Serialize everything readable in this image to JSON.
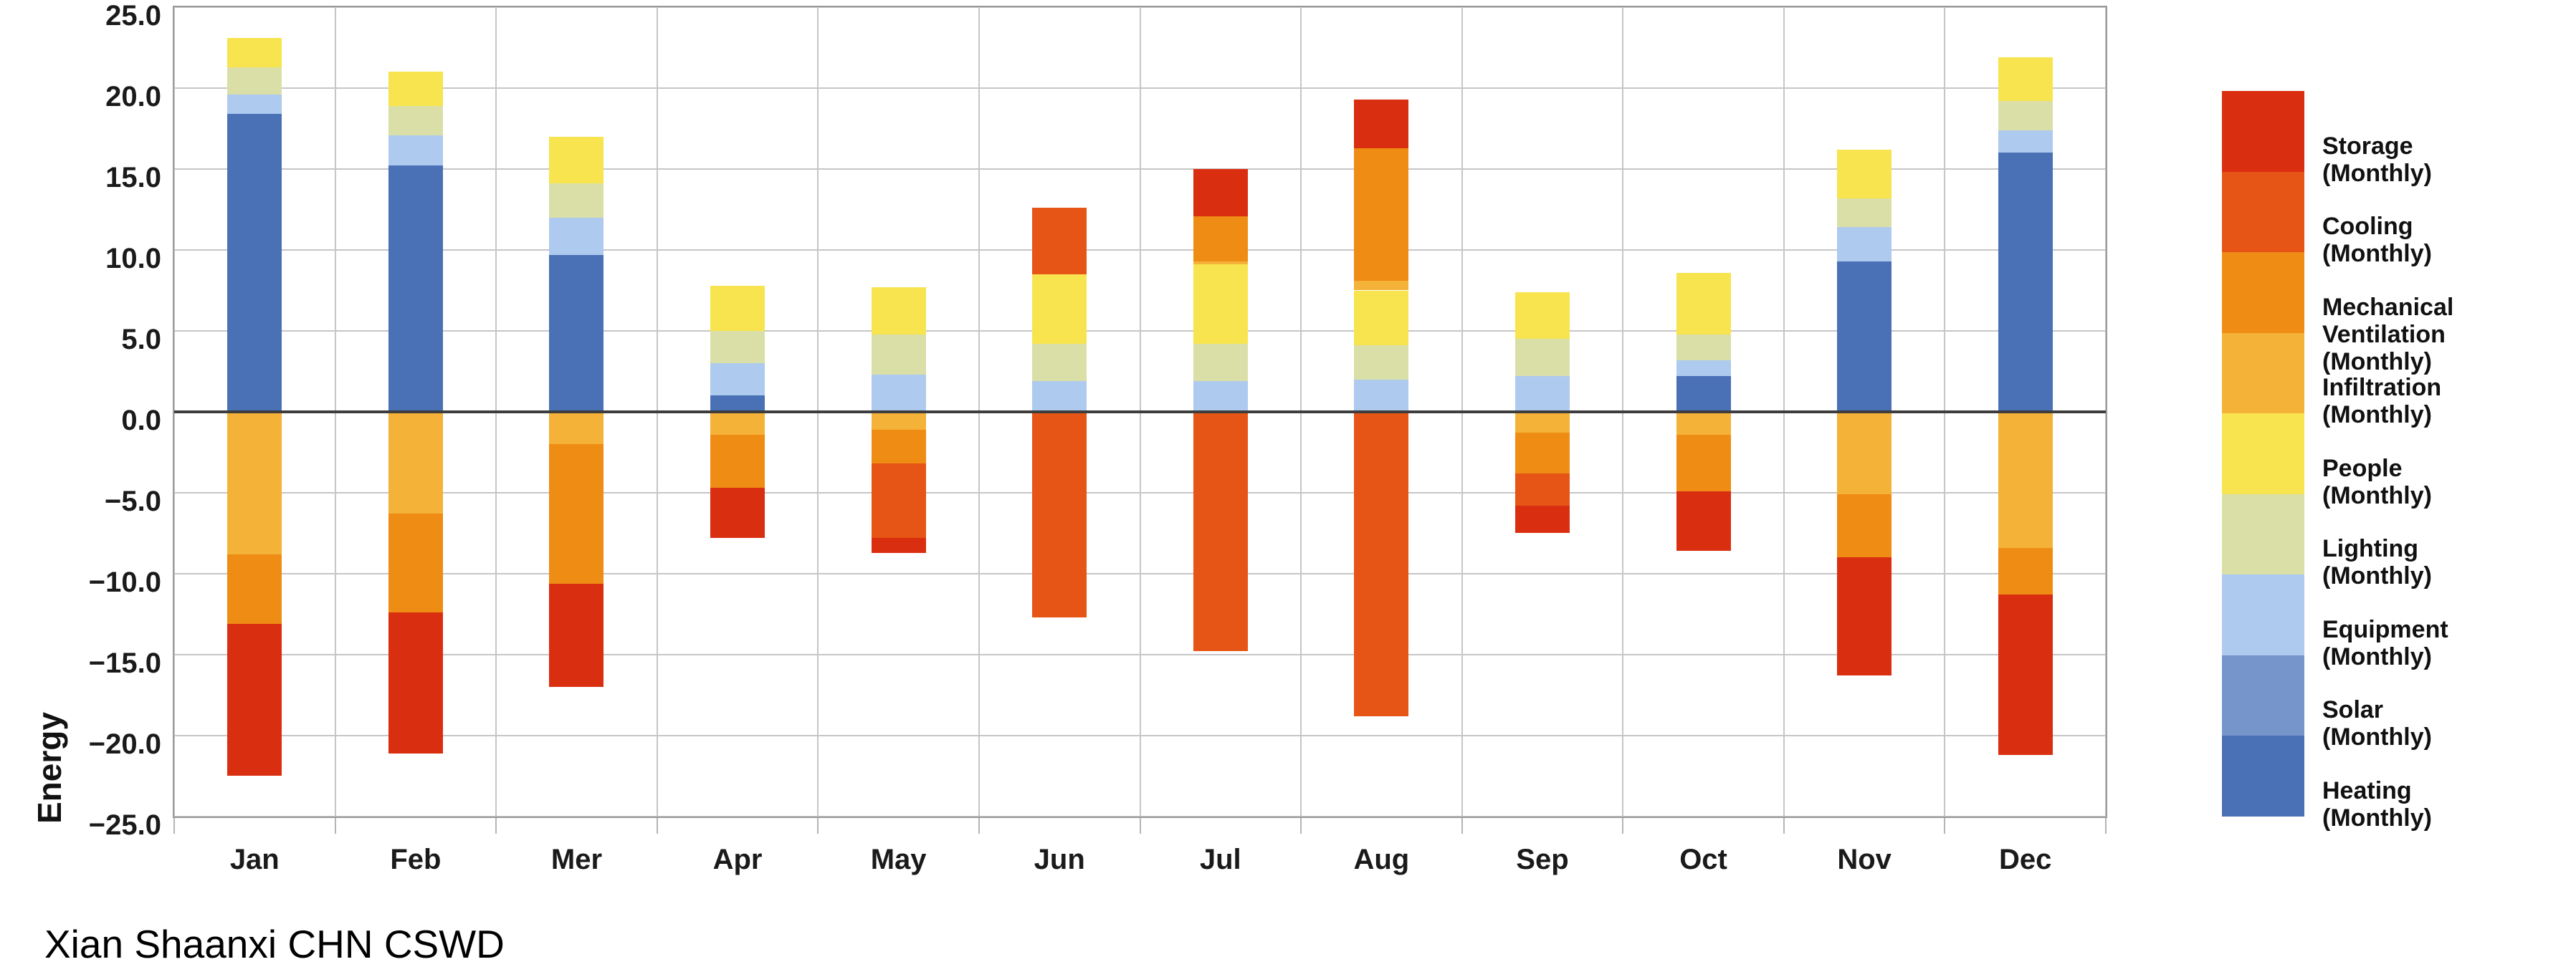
{
  "chart_data": {
    "type": "stacked-bar",
    "title": "Xian Shaanxi CHN CSWD",
    "ylabel": "Energy",
    "ylim": [
      -25,
      25
    ],
    "ytick_step": 5,
    "yticks": [
      "25.0",
      "20.0",
      "15.0",
      "10.0",
      "5.0",
      "0.0",
      "−5.0",
      "−10.0",
      "−15.0",
      "−20.0",
      "−25.0"
    ],
    "grid": true,
    "legend_position": "right",
    "zero_line": true,
    "legend": [
      {
        "name": "Storage",
        "sub": "(Monthly)",
        "color": "#da2e10"
      },
      {
        "name": "Cooling",
        "sub": "(Monthly)",
        "color": "#e65416"
      },
      {
        "name": "Mechanical Ventilation",
        "sub": "(Monthly)",
        "color": "#ee8c14"
      },
      {
        "name": "Infiltration",
        "sub": "(Monthly)",
        "color": "#f4b238"
      },
      {
        "name": "People",
        "sub": "(Monthly)",
        "color": "#f8e44e"
      },
      {
        "name": "Lighting",
        "sub": "(Monthly)",
        "color": "#dadfa8"
      },
      {
        "name": "Equipment",
        "sub": "(Monthly)",
        "color": "#aecaee"
      },
      {
        "name": "Solar",
        "sub": "(Monthly)",
        "color": "#7595cb"
      },
      {
        "name": "Heating",
        "sub": "(Monthly)",
        "color": "#4a70b5"
      }
    ],
    "months": [
      {
        "label": "Jan",
        "pos": [
          [
            "Heating",
            18.4
          ],
          [
            "Equipment",
            1.2
          ],
          [
            "Lighting",
            1.7
          ],
          [
            "People",
            1.8
          ]
        ],
        "neg": [
          [
            "Infiltration",
            8.8
          ],
          [
            "Mechanical Ventilation",
            4.3
          ],
          [
            "Storage",
            9.4
          ]
        ]
      },
      {
        "label": "Feb",
        "pos": [
          [
            "Heating",
            15.2
          ],
          [
            "Equipment",
            1.9
          ],
          [
            "Lighting",
            1.8
          ],
          [
            "People",
            2.1
          ]
        ],
        "neg": [
          [
            "Infiltration",
            6.3
          ],
          [
            "Mechanical Ventilation",
            6.1
          ],
          [
            "Storage",
            8.7
          ]
        ]
      },
      {
        "label": "Mer",
        "pos": [
          [
            "Heating",
            9.7
          ],
          [
            "Equipment",
            2.3
          ],
          [
            "Lighting",
            2.1
          ],
          [
            "People",
            2.9
          ]
        ],
        "neg": [
          [
            "Infiltration",
            2.0
          ],
          [
            "Mechanical Ventilation",
            8.6
          ],
          [
            "Storage",
            6.4
          ]
        ]
      },
      {
        "label": "Apr",
        "pos": [
          [
            "Heating",
            1.0
          ],
          [
            "Equipment",
            2.0
          ],
          [
            "Lighting",
            2.0
          ],
          [
            "People",
            2.8
          ]
        ],
        "neg": [
          [
            "Infiltration",
            1.4
          ],
          [
            "Mechanical Ventilation",
            3.3
          ],
          [
            "Storage",
            3.1
          ]
        ]
      },
      {
        "label": "May",
        "pos": [
          [
            "Equipment",
            2.3
          ],
          [
            "Lighting",
            2.5
          ],
          [
            "People",
            2.9
          ]
        ],
        "neg": [
          [
            "Infiltration",
            1.1
          ],
          [
            "Mechanical Ventilation",
            2.1
          ],
          [
            "Cooling",
            4.6
          ],
          [
            "Storage",
            0.9
          ]
        ]
      },
      {
        "label": "Jun",
        "pos": [
          [
            "Equipment",
            1.9
          ],
          [
            "Lighting",
            2.3
          ],
          [
            "People",
            4.3
          ],
          [
            "Cooling",
            4.1
          ]
        ],
        "neg": [
          [
            "Cooling",
            12.7
          ]
        ]
      },
      {
        "label": "Jul",
        "pos": [
          [
            "Equipment",
            1.9
          ],
          [
            "Lighting",
            2.3
          ],
          [
            "People",
            4.9
          ],
          [
            "Infiltration",
            0.2
          ],
          [
            "Mechanical Ventilation",
            2.8
          ],
          [
            "Storage",
            2.9
          ]
        ],
        "neg": [
          [
            "Cooling",
            14.8
          ]
        ]
      },
      {
        "label": "Aug",
        "pos": [
          [
            "Equipment",
            2.0
          ],
          [
            "Lighting",
            2.1
          ],
          [
            "People",
            3.4
          ],
          [
            "Infiltration",
            0.6
          ],
          [
            "Mechanical Ventilation",
            8.2
          ],
          [
            "Storage",
            3.0
          ]
        ],
        "neg": [
          [
            "Cooling",
            18.8
          ]
        ]
      },
      {
        "label": "Sep",
        "pos": [
          [
            "Equipment",
            2.2
          ],
          [
            "Lighting",
            2.3
          ],
          [
            "People",
            2.9
          ]
        ],
        "neg": [
          [
            "Infiltration",
            1.3
          ],
          [
            "Mechanical Ventilation",
            2.5
          ],
          [
            "Cooling",
            2.0
          ],
          [
            "Storage",
            1.7
          ]
        ]
      },
      {
        "label": "Oct",
        "pos": [
          [
            "Heating",
            2.2
          ],
          [
            "Equipment",
            1.0
          ],
          [
            "Lighting",
            1.6
          ],
          [
            "People",
            3.8
          ]
        ],
        "neg": [
          [
            "Infiltration",
            1.4
          ],
          [
            "Mechanical Ventilation",
            3.5
          ],
          [
            "Storage",
            3.7
          ]
        ]
      },
      {
        "label": "Nov",
        "pos": [
          [
            "Heating",
            9.3
          ],
          [
            "Equipment",
            2.1
          ],
          [
            "Lighting",
            1.8
          ],
          [
            "People",
            3.0
          ]
        ],
        "neg": [
          [
            "Infiltration",
            5.1
          ],
          [
            "Mechanical Ventilation",
            3.9
          ],
          [
            "Storage",
            7.3
          ]
        ]
      },
      {
        "label": "Dec",
        "pos": [
          [
            "Heating",
            16.0
          ],
          [
            "Equipment",
            1.4
          ],
          [
            "Lighting",
            1.8
          ],
          [
            "People",
            2.7
          ]
        ],
        "neg": [
          [
            "Infiltration",
            8.4
          ],
          [
            "Mechanical Ventilation",
            2.9
          ],
          [
            "Storage",
            9.9
          ]
        ]
      }
    ]
  }
}
